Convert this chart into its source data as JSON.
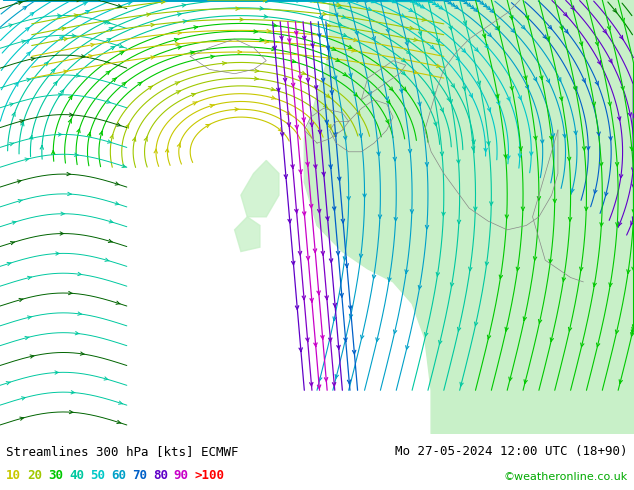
{
  "title_left": "Streamlines 300 hPa [kts] ECMWF",
  "title_right": "Mo 27-05-2024 12:00 UTC (18+90)",
  "watermark": "©weatheronline.co.uk",
  "legend_values": [
    "10",
    "20",
    "30",
    "40",
    "50",
    "60",
    "70",
    "80",
    "90",
    ">100"
  ],
  "legend_colors": [
    "#c8c800",
    "#a0c800",
    "#00c800",
    "#00c8a0",
    "#00c8c8",
    "#00a0c8",
    "#0060c8",
    "#6000c8",
    "#c800c8",
    "#ff0000"
  ],
  "bg_color": "#d8d8d8",
  "green_fill": "#c8f0c8",
  "text_color": "#000000",
  "font_size_title": 9,
  "font_size_legend": 9,
  "watermark_color": "#00aa00",
  "fig_width": 6.34,
  "fig_height": 4.9,
  "dpi": 100,
  "bottom_bar_height": 0.115
}
